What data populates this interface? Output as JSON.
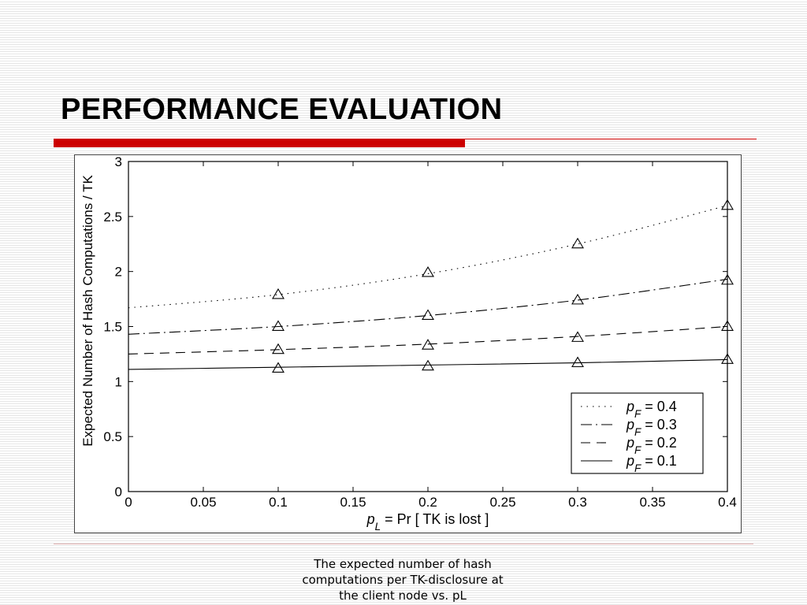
{
  "slide": {
    "title": "PERFORMANCE EVALUATION",
    "caption": "The expected number of hash\ncomputations per TK-disclosure at\nthe client node vs. pL",
    "colors": {
      "accent": "#cc0000",
      "text": "#000000"
    }
  },
  "chart_data": {
    "type": "line",
    "xlabel": "p_L = Pr [ TK is lost ]",
    "ylabel": "Expected Number of Hash Computations / TK",
    "xlim": [
      0,
      0.4
    ],
    "ylim": [
      0,
      3
    ],
    "xticks": [
      "0",
      "0.05",
      "0.1",
      "0.15",
      "0.2",
      "0.25",
      "0.3",
      "0.35",
      "0.4"
    ],
    "yticks": [
      "0",
      "0.5",
      "1",
      "1.5",
      "2",
      "2.5",
      "3"
    ],
    "grid": false,
    "legend_position": "bottom-right",
    "marker": "triangle",
    "series": [
      {
        "name": "p_F = 0.4",
        "legend_label": "= 0.4",
        "style": "dotted",
        "curve": {
          "x": [
            0,
            0.1,
            0.2,
            0.3,
            0.4
          ],
          "y": [
            1.67,
            1.79,
            1.98,
            2.25,
            2.6
          ]
        },
        "markers": {
          "x": [
            0.1,
            0.2,
            0.3,
            0.4
          ],
          "y": [
            1.79,
            1.99,
            2.25,
            2.6
          ]
        }
      },
      {
        "name": "p_F = 0.3",
        "legend_label": "= 0.3",
        "style": "dashdot",
        "curve": {
          "x": [
            0,
            0.1,
            0.2,
            0.3,
            0.4
          ],
          "y": [
            1.43,
            1.5,
            1.6,
            1.74,
            1.93
          ]
        },
        "markers": {
          "x": [
            0.1,
            0.2,
            0.3,
            0.4
          ],
          "y": [
            1.5,
            1.6,
            1.74,
            1.92
          ]
        }
      },
      {
        "name": "p_F = 0.2",
        "legend_label": "= 0.2",
        "style": "dashed",
        "curve": {
          "x": [
            0,
            0.1,
            0.2,
            0.3,
            0.4
          ],
          "y": [
            1.25,
            1.29,
            1.34,
            1.41,
            1.5
          ]
        },
        "markers": {
          "x": [
            0.1,
            0.2,
            0.3,
            0.4
          ],
          "y": [
            1.29,
            1.33,
            1.4,
            1.5
          ]
        }
      },
      {
        "name": "p_F = 0.1",
        "legend_label": "= 0.1",
        "style": "solid",
        "curve": {
          "x": [
            0,
            0.1,
            0.2,
            0.3,
            0.4
          ],
          "y": [
            1.11,
            1.13,
            1.15,
            1.17,
            1.2
          ]
        },
        "markers": {
          "x": [
            0.1,
            0.2,
            0.3,
            0.4
          ],
          "y": [
            1.12,
            1.14,
            1.17,
            1.2
          ]
        }
      }
    ]
  }
}
